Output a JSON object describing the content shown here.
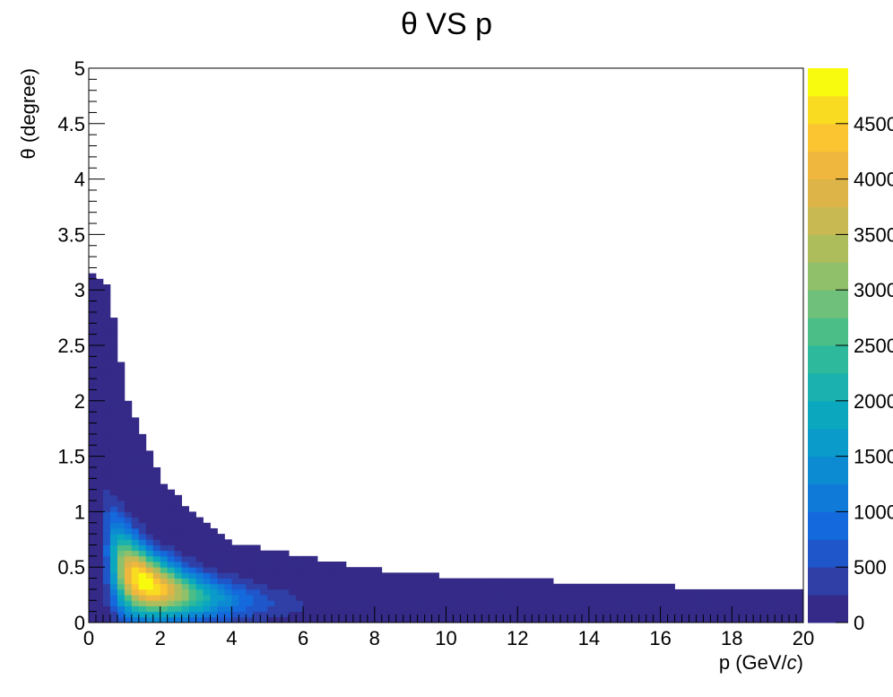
{
  "chart_data": {
    "type": "heatmap",
    "title": "θ VS p",
    "xlabel": "p (GeV/c)",
    "xlabel_parts": [
      "p (GeV/",
      "c",
      ")"
    ],
    "ylabel": "θ (degree)",
    "xlim": [
      0,
      20
    ],
    "ylim": [
      0,
      5
    ],
    "bins": {
      "nx": 100,
      "ny": 100
    },
    "x_ticks": [
      "0",
      "2",
      "4",
      "6",
      "8",
      "10",
      "12",
      "14",
      "16",
      "18",
      "20"
    ],
    "y_ticks": [
      "0",
      "0.5",
      "1",
      "1.5",
      "2",
      "2.5",
      "3",
      "3.5",
      "4",
      "4.5",
      "5"
    ],
    "colorbar": {
      "min": 0,
      "max": 5000,
      "ticks": [
        "0",
        "500",
        "1000",
        "1500",
        "2000",
        "2500",
        "3000",
        "3500",
        "4000",
        "4500"
      ],
      "palette": [
        "#352a87",
        "#2f3fa6",
        "#1f56c9",
        "#1469dc",
        "#0f7ad8",
        "#0d8bd2",
        "#0b9bcb",
        "#0aa7bf",
        "#1ab1ae",
        "#2cb99c",
        "#4bbe88",
        "#6fc07a",
        "#90c06a",
        "#aebd5c",
        "#c9b952",
        "#ddb447",
        "#efb73d",
        "#fbc531",
        "#f9dc22",
        "#f9fb0e"
      ]
    },
    "ridge": {
      "description_points": [
        {
          "p": 0.2,
          "theta_max": 3.15
        },
        {
          "p": 0.6,
          "theta_max": 3.0
        },
        {
          "p": 1.0,
          "theta_max": 2.1
        },
        {
          "p": 2.0,
          "theta_max": 1.3
        },
        {
          "p": 3.0,
          "theta_max": 0.95
        },
        {
          "p": 4.0,
          "theta_max": 0.72
        },
        {
          "p": 6.0,
          "theta_max": 0.6
        },
        {
          "p": 8.0,
          "theta_max": 0.48
        },
        {
          "p": 10.0,
          "theta_max": 0.42
        },
        {
          "p": 12.0,
          "theta_max": 0.39
        },
        {
          "p": 16.0,
          "theta_max": 0.33
        },
        {
          "p": 20.0,
          "theta_max": 0.28
        }
      ],
      "peak": {
        "p": 1.6,
        "theta": 0.35,
        "count": 5000
      }
    }
  }
}
